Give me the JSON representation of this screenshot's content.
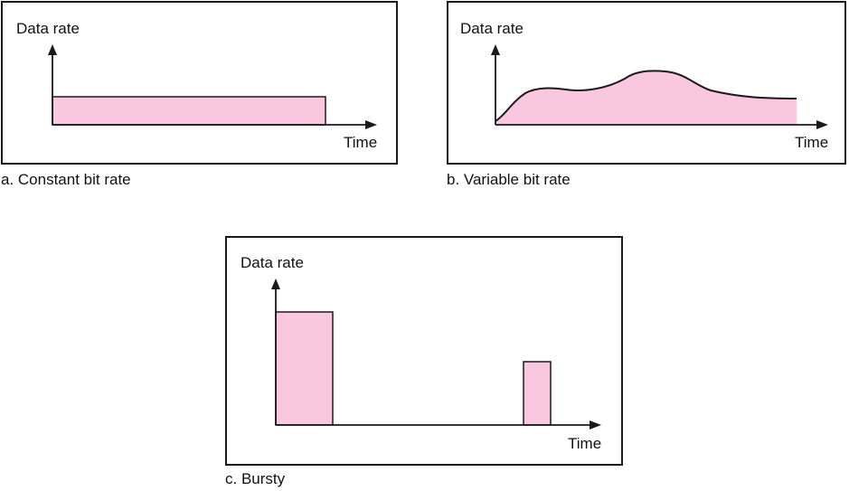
{
  "colors": {
    "fill": "#f9c7df",
    "stroke": "#1a1a1a",
    "frame": "#1a1a1a"
  },
  "panels": [
    {
      "id": "a",
      "ylabel": "Data rate",
      "xlabel": "Time",
      "caption": "a. Constant bit rate"
    },
    {
      "id": "b",
      "ylabel": "Data rate",
      "xlabel": "Time",
      "caption": "b. Variable bit rate"
    },
    {
      "id": "c",
      "ylabel": "Data rate",
      "xlabel": "Time",
      "caption": "c. Bursty"
    }
  ]
}
